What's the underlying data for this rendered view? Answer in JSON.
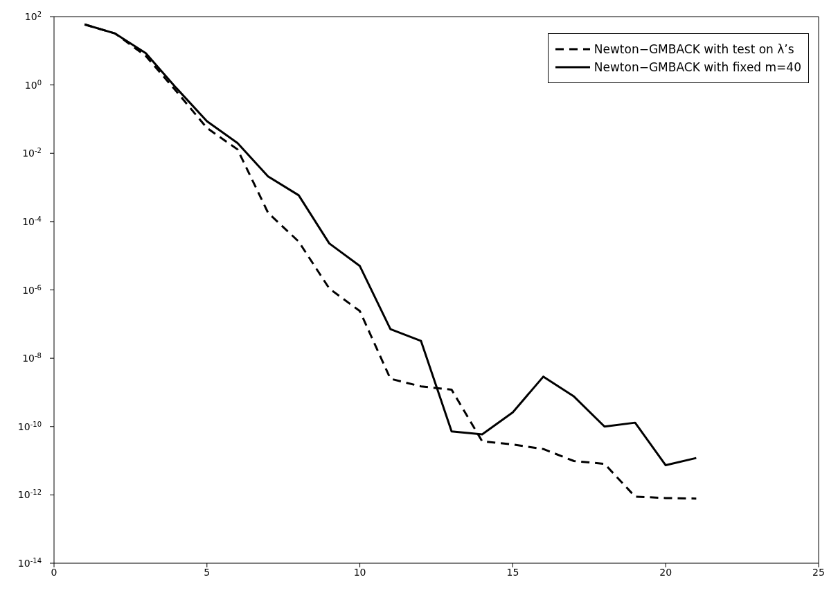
{
  "chart_data": {
    "type": "line",
    "log": "y",
    "grid": false,
    "legend": "top right",
    "marker": "none",
    "x": [
      1,
      2,
      3,
      4,
      5,
      6,
      7,
      8,
      9,
      10,
      11,
      12,
      13,
      14,
      15,
      16,
      17,
      18,
      19,
      20,
      21
    ],
    "xlim": [
      0,
      25
    ],
    "xticks": [
      0,
      5,
      10,
      15,
      20,
      25
    ],
    "ylim": [
      1e-14,
      100
    ],
    "yticks": [
      {
        "value": 1e-14,
        "label": "10$^{-14}$"
      },
      {
        "value": 1e-12,
        "label": "10$^{-12}$"
      },
      {
        "value": 1e-10,
        "label": "10$^{-10}$"
      },
      {
        "value": 1e-08,
        "label": "10$^{-8}$"
      },
      {
        "value": 1e-06,
        "label": "10$^{-6}$"
      },
      {
        "value": 0.0001,
        "label": "10$^{-4}$"
      },
      {
        "value": 0.01,
        "label": "10$^{-2}$"
      },
      {
        "value": 1,
        "label": "10$^{0}$"
      },
      {
        "value": 100,
        "label": "10$^{2}$"
      }
    ],
    "series": [
      {
        "name": "Newton−GMBACK with test on λ’s",
        "color": "#000000",
        "line_style": "dashed",
        "values": [
          59,
          32,
          7.1,
          0.65,
          0.055,
          0.013,
          0.00018,
          2.6e-05,
          1.1e-06,
          2.4e-07,
          2.5e-09,
          1.5e-09,
          1.2e-09,
          3.7e-11,
          3e-11,
          2.2e-11,
          9.8e-12,
          8.1e-12,
          8.9e-13,
          8.1e-13,
          7.8e-13
        ]
      },
      {
        "name": "Newton−GMBACK with fixed m=40",
        "color": "#000000",
        "line_style": "solid",
        "values": [
          59,
          32,
          8.5,
          0.81,
          0.087,
          0.02,
          0.0021,
          0.00059,
          2.3e-05,
          5e-06,
          7.1e-08,
          3.2e-08,
          7.2e-11,
          5.9e-11,
          2.6e-10,
          2.9e-09,
          7.6e-10,
          1e-10,
          1.3e-10,
          7.4e-12,
          1.2e-11
        ]
      }
    ]
  }
}
